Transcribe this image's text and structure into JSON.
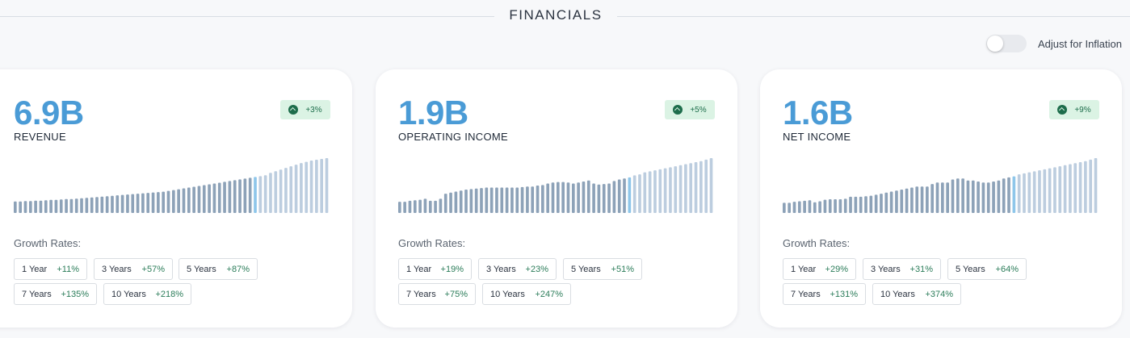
{
  "header": {
    "title": "FINANCIALS"
  },
  "inflation_toggle": {
    "label": "Adjust for Inflation",
    "on": false
  },
  "growth_title": "Growth Rates:",
  "colors": {
    "bar_past": "#8da2b8",
    "bar_current": "#8ec6ea",
    "bar_future": "#bccddf",
    "value": "#4a9bd6",
    "badge_bg": "#dbf3e4",
    "badge_fg": "#1d6d4b"
  },
  "cards": [
    {
      "value": "6.9B",
      "metric": "REVENUE",
      "badge": "+3%",
      "bars": [
        14,
        14,
        14.5,
        14.5,
        15,
        15,
        15.5,
        16,
        16,
        16.5,
        17,
        17,
        17.5,
        18,
        18.5,
        19,
        19.5,
        20,
        20.5,
        21,
        21.5,
        22,
        22.5,
        23,
        23.5,
        24,
        24.5,
        25,
        25.5,
        26,
        27,
        28,
        29,
        30,
        31,
        32,
        33,
        34,
        35,
        36,
        37,
        38,
        39,
        40,
        41,
        42,
        43,
        44,
        45,
        46,
        49,
        51,
        53,
        55,
        57,
        59,
        61,
        62.5,
        64,
        65,
        66,
        67
      ],
      "current_index": 47,
      "rates": [
        {
          "period": "1 Year",
          "change": "+11%"
        },
        {
          "period": "3 Years",
          "change": "+57%"
        },
        {
          "period": "5 Years",
          "change": "+87%"
        },
        {
          "period": "7 Years",
          "change": "+135%"
        },
        {
          "period": "10 Years",
          "change": "+218%"
        }
      ]
    },
    {
      "value": "1.9B",
      "metric": "OPERATING INCOME",
      "badge": "+5%",
      "bars": [
        11,
        11,
        12,
        12.5,
        13,
        14,
        12,
        12,
        14,
        19,
        20,
        21,
        22,
        23,
        23.5,
        24,
        24.5,
        25,
        25,
        25,
        25,
        25,
        25,
        25,
        25.5,
        26,
        26,
        27,
        27.5,
        29,
        30,
        30.5,
        30.5,
        30,
        29,
        30,
        31,
        32,
        29,
        28,
        28.5,
        29,
        31.5,
        33,
        34,
        35,
        37,
        38,
        40,
        41,
        42,
        43,
        44,
        45,
        46,
        47,
        48,
        49,
        50,
        51,
        52.5,
        54
      ],
      "current_index": 45,
      "rates": [
        {
          "period": "1 Year",
          "change": "+19%"
        },
        {
          "period": "3 Years",
          "change": "+23%"
        },
        {
          "period": "5 Years",
          "change": "+51%"
        },
        {
          "period": "7 Years",
          "change": "+75%"
        },
        {
          "period": "10 Years",
          "change": "+247%"
        }
      ]
    },
    {
      "value": "1.6B",
      "metric": "NET INCOME",
      "badge": "+9%",
      "bars": [
        10,
        10,
        11,
        11.5,
        12,
        12.5,
        10.5,
        11.5,
        13,
        13.5,
        13.5,
        13.5,
        14,
        16,
        16,
        16,
        16.5,
        17,
        18,
        19,
        20,
        21,
        22,
        23,
        24,
        25,
        26,
        26,
        26,
        28.5,
        30,
        30,
        30,
        33,
        34,
        34,
        32,
        32,
        31,
        30,
        30,
        31,
        32,
        34,
        35,
        36,
        38,
        39,
        40,
        41,
        42,
        43,
        44,
        45,
        46,
        47,
        48,
        49,
        50,
        51,
        52.5,
        54
      ],
      "current_index": 45,
      "rates": [
        {
          "period": "1 Year",
          "change": "+29%"
        },
        {
          "period": "3 Years",
          "change": "+31%"
        },
        {
          "period": "5 Years",
          "change": "+64%"
        },
        {
          "period": "7 Years",
          "change": "+131%"
        },
        {
          "period": "10 Years",
          "change": "+374%"
        }
      ]
    }
  ]
}
